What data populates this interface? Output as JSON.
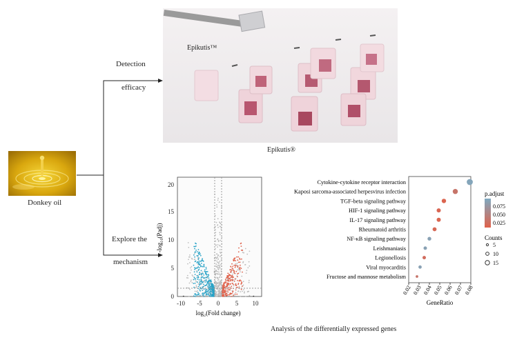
{
  "flow": {
    "detection_line1": "Detection",
    "detection_line2": "efficacy",
    "explore_line1": "Explore the",
    "explore_line2": "mechanism"
  },
  "donkey_oil": {
    "label": "Donkey oil"
  },
  "epikutis": {
    "top_label": "Epikutis™",
    "bottom_label": "Epikutis®"
  },
  "volcano": {
    "xlabel": "log₂(Fold change)",
    "ylabel": "-log₁₀(Padj)",
    "xticks": [
      "-10",
      "-5",
      "0",
      "5",
      "10"
    ],
    "yticks": [
      "0",
      "5",
      "10",
      "15",
      "20"
    ],
    "colors": {
      "down": "#29a3c7",
      "up": "#e0614a",
      "ns": "#bdbdbd"
    }
  },
  "caption": "Analysis of the differentially expressed genes",
  "chart_data": {
    "type": "scatter",
    "xlabel": "GeneRatio",
    "ylabel": "",
    "xlim": [
      0.02,
      0.08
    ],
    "xticks": [
      "0.02",
      "0.03",
      "0.04",
      "0.05",
      "0.06",
      "0.07",
      "0.08"
    ],
    "categories": [
      "Cytokine-cytokine receptor interaction",
      "Kaposi sarcoma-associated herpesvirus infection",
      "TGF-beta signaling pathway",
      "HIF-1 signaling pathway",
      "IL-17 signaling pathway",
      "Rheumatoid arthritis",
      "NF-κB signaling pathway",
      "Leishmaniasis",
      "Legionellosis",
      "Viral myocarditis",
      "Fructose and mannose metabolism"
    ],
    "gene_ratio": [
      0.079,
      0.065,
      0.054,
      0.049,
      0.049,
      0.045,
      0.04,
      0.036,
      0.035,
      0.031,
      0.028
    ],
    "p_adjust": [
      0.095,
      0.03,
      0.01,
      0.012,
      0.011,
      0.014,
      0.09,
      0.09,
      0.02,
      0.09,
      0.03
    ],
    "counts": [
      20,
      16,
      13,
      12,
      12,
      11,
      10,
      9,
      9,
      8,
      5
    ],
    "legend": {
      "color_title": "p.adjust",
      "color_ticks": [
        "0.075",
        "0.050",
        "0.025"
      ],
      "size_title": "Counts",
      "size_ticks": [
        "5",
        "10",
        "15"
      ],
      "color_low": "#e0614a",
      "color_high": "#7fa9c0"
    }
  }
}
